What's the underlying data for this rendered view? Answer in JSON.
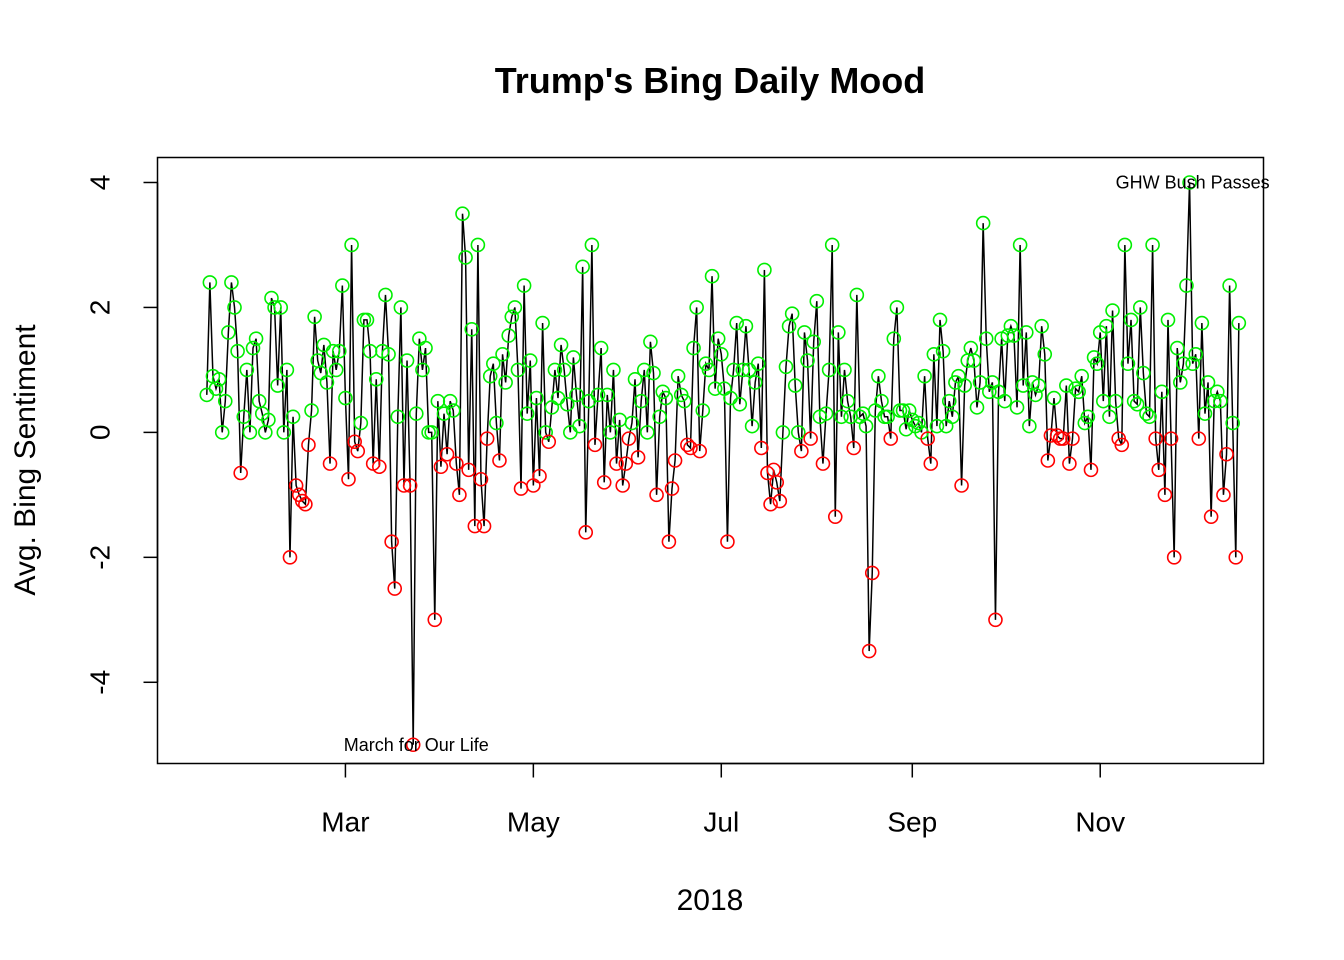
{
  "chart_data": {
    "type": "line",
    "title": "Trump's Bing Daily Mood",
    "xlabel": "2018",
    "ylabel": "Avg. Bing Sentiment",
    "x_ticks": [
      "Mar",
      "May",
      "Jul",
      "Sep",
      "Nov"
    ],
    "y_ticks": [
      "-4",
      "-2",
      "0",
      "2",
      "4"
    ],
    "ylim": [
      -5.3,
      4.4
    ],
    "xlim_days": [
      -2,
      357
    ],
    "grid": false,
    "legend": "none",
    "positive_color": "#00ee00",
    "negative_color": "#ff0000",
    "line_color": "#000000",
    "annotations": [
      {
        "text": "March for Our Life",
        "x": "2018-03-24",
        "y": -5.0
      },
      {
        "text": "GHW Bush Passes",
        "x": "2018-12-01",
        "y": 4.0
      }
    ],
    "series": [
      {
        "start_date": "2018-01-15",
        "values": [
          0.6,
          2.4,
          0.9,
          0.7,
          0.85,
          0.0,
          0.5,
          1.6,
          2.4,
          2.0,
          1.3,
          -0.65,
          0.25,
          1.0,
          0.0,
          1.35,
          1.5,
          0.5,
          0.3,
          0.0,
          0.2,
          2.15,
          2.0,
          0.75,
          2.0,
          0.0,
          1.0,
          -2.0,
          0.25,
          -0.85,
          -1.0,
          -1.1,
          -1.15,
          -0.2,
          0.35,
          1.85,
          1.15,
          0.95,
          1.4,
          0.8,
          -0.5,
          1.3,
          1.0,
          1.3,
          2.35,
          0.55,
          -0.75,
          3.0,
          -0.15,
          -0.3,
          0.15,
          1.8,
          1.8,
          1.3,
          -0.5,
          0.85,
          -0.55,
          1.3,
          2.2,
          1.25,
          -1.75,
          -2.5,
          0.25,
          2.0,
          -0.85,
          1.15,
          -0.85,
          -5.0,
          0.3,
          1.5,
          1.0,
          1.35,
          0.0,
          0.0,
          -3.0,
          0.5,
          -0.55,
          0.3,
          -0.35,
          0.5,
          0.35,
          -0.5,
          -1.0,
          3.5,
          2.8,
          -0.6,
          1.65,
          -1.5,
          3.0,
          -0.75,
          -1.5,
          -0.1,
          0.9,
          1.1,
          0.15,
          -0.45,
          1.25,
          0.8,
          1.55,
          1.85,
          2.0,
          1.0,
          -0.9,
          2.35,
          0.3,
          1.15,
          -0.85,
          0.55,
          -0.7,
          1.75,
          0.0,
          -0.15,
          0.4,
          1.0,
          0.55,
          1.4,
          1.0,
          0.45,
          0.0,
          1.2,
          0.6,
          0.1,
          2.65,
          -1.6,
          0.5,
          3.0,
          -0.2,
          0.6,
          1.35,
          -0.8,
          0.6,
          0.0,
          1.0,
          -0.5,
          0.2,
          -0.85,
          -0.5,
          -0.1,
          0.15,
          0.85,
          -0.4,
          0.5,
          1.0,
          0.0,
          1.45,
          0.95,
          -1.0,
          0.25,
          0.65,
          0.55,
          -1.75,
          -0.9,
          -0.45,
          0.9,
          0.6,
          0.5,
          -0.2,
          -0.25,
          1.35,
          2.0,
          -0.3,
          0.35,
          1.1,
          1.0,
          2.5,
          0.7,
          1.5,
          1.25,
          0.7,
          -1.75,
          0.55,
          1.0,
          1.75,
          0.45,
          1.0,
          1.7,
          1.0,
          0.1,
          0.8,
          1.1,
          -0.25,
          2.6,
          -0.65,
          -1.15,
          -0.6,
          -0.8,
          -1.1,
          0.0,
          1.05,
          1.7,
          1.9,
          0.75,
          0.0,
          -0.3,
          1.6,
          1.15,
          -0.1,
          1.45,
          2.1,
          0.25,
          -0.5,
          0.3,
          1.0,
          3.0,
          -1.35,
          1.6,
          0.25,
          1.0,
          0.5,
          0.25,
          -0.25,
          2.2,
          0.25,
          0.3,
          0.1,
          -3.5,
          -2.25,
          0.35,
          0.9,
          0.5,
          0.25,
          0.25,
          -0.1,
          1.5,
          2.0,
          0.35,
          0.35,
          0.05,
          0.35,
          0.2,
          0.1,
          0.15,
          0.0,
          0.9,
          -0.1,
          -0.5,
          1.25,
          0.1,
          1.8,
          1.3,
          0.1,
          0.5,
          0.25,
          0.8,
          0.9,
          -0.85,
          0.75,
          1.15,
          1.35,
          1.15,
          0.4,
          0.8,
          3.35,
          1.5,
          0.65,
          0.8,
          -3.0,
          0.65,
          1.5,
          0.5,
          1.55,
          1.7,
          1.55,
          0.4,
          3.0,
          0.75,
          1.6,
          0.1,
          0.8,
          0.6,
          0.75,
          1.7,
          1.25,
          -0.45,
          -0.05,
          0.55,
          -0.05,
          -0.1,
          -0.1,
          0.75,
          -0.5,
          -0.1,
          0.7,
          0.65,
          0.9,
          0.15,
          0.25,
          -0.6,
          1.2,
          1.1,
          1.6,
          0.5,
          1.7,
          0.25,
          1.95,
          0.5,
          -0.1,
          -0.2,
          3.0,
          1.1,
          1.8,
          0.5,
          0.45,
          2.0,
          0.95,
          0.3,
          0.25,
          3.0,
          -0.1,
          -0.6,
          0.65,
          -1.0,
          1.8,
          -0.1,
          -2.0,
          1.35,
          0.8,
          1.1,
          2.35,
          4.0,
          1.1,
          1.25,
          -0.1,
          1.75,
          0.3,
          0.8,
          -1.35,
          0.5,
          0.65,
          0.5,
          -1.0,
          -0.35,
          2.35,
          0.15,
          -2.0,
          1.75
        ]
      }
    ]
  }
}
